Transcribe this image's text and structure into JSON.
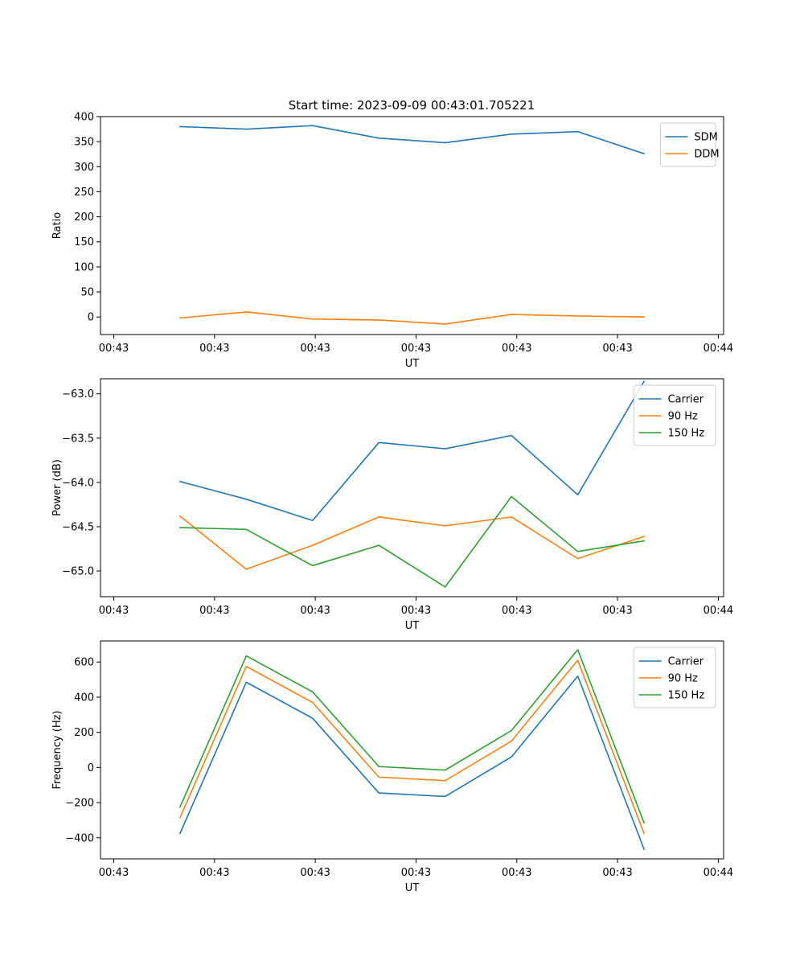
{
  "figure_title": "Start time: 2023-09-09 00:43:01.705221",
  "colors": {
    "c0": "#1f77b4",
    "c1": "#ff7f0e",
    "c2": "#2ca02c"
  },
  "chart_data": [
    {
      "type": "line",
      "title": "Start time: 2023-09-09 00:43:01.705221",
      "xlabel": "UT",
      "ylabel": "Ratio",
      "x": [
        1,
        2,
        3,
        4,
        5,
        6,
        7,
        8
      ],
      "xlim": [
        -0.2,
        9.2
      ],
      "xticks": [
        0,
        1.52,
        3.04,
        4.56,
        6.08,
        7.6,
        9.12
      ],
      "xtick_labels": [
        "00:43",
        "00:43",
        "00:43",
        "00:43",
        "00:43",
        "00:43",
        "00:44"
      ],
      "ylim": [
        -35,
        400
      ],
      "yticks": [
        0,
        50,
        100,
        150,
        200,
        250,
        300,
        350,
        400
      ],
      "ytick_labels": [
        "0",
        "50",
        "100",
        "150",
        "200",
        "250",
        "300",
        "350",
        "400"
      ],
      "legend": "upper right",
      "series": [
        {
          "name": "SDM",
          "color": "#1f77b4",
          "values": [
            380,
            375,
            382,
            357,
            348,
            365,
            370,
            326
          ]
        },
        {
          "name": "DDM",
          "color": "#ff7f0e",
          "values": [
            -2,
            10,
            -4,
            -6,
            -14,
            5,
            2,
            0
          ]
        }
      ]
    },
    {
      "type": "line",
      "title": "",
      "xlabel": "UT",
      "ylabel": "Power (dB)",
      "x": [
        1,
        2,
        3,
        4,
        5,
        6,
        7,
        8
      ],
      "xlim": [
        -0.2,
        9.2
      ],
      "xticks": [
        0,
        1.52,
        3.04,
        4.56,
        6.08,
        7.6,
        9.12
      ],
      "xtick_labels": [
        "00:43",
        "00:43",
        "00:43",
        "00:43",
        "00:43",
        "00:43",
        "00:44"
      ],
      "ylim": [
        -65.29,
        -62.83
      ],
      "yticks": [
        -65.0,
        -64.5,
        -64.0,
        -63.5,
        -63.0
      ],
      "ytick_labels": [
        "−65.0",
        "−64.5",
        "−64.0",
        "−63.5",
        "−63.0"
      ],
      "legend": "upper right",
      "series": [
        {
          "name": "Carrier",
          "color": "#1f77b4",
          "values": [
            -63.99,
            -64.19,
            -64.43,
            -63.55,
            -63.62,
            -63.47,
            -64.14,
            -62.86
          ]
        },
        {
          "name": "90 Hz",
          "color": "#ff7f0e",
          "values": [
            -64.38,
            -64.98,
            -64.71,
            -64.39,
            -64.49,
            -64.39,
            -64.86,
            -64.61
          ]
        },
        {
          "name": "150 Hz",
          "color": "#2ca02c",
          "values": [
            -64.51,
            -64.53,
            -64.94,
            -64.71,
            -65.18,
            -64.16,
            -64.78,
            -64.66
          ]
        }
      ]
    },
    {
      "type": "line",
      "title": "",
      "xlabel": "UT",
      "ylabel": "Frequency (Hz)",
      "x": [
        1,
        2,
        3,
        4,
        5,
        6,
        7,
        8
      ],
      "xlim": [
        -0.2,
        9.2
      ],
      "xticks": [
        0,
        1.52,
        3.04,
        4.56,
        6.08,
        7.6,
        9.12
      ],
      "xtick_labels": [
        "00:43",
        "00:43",
        "00:43",
        "00:43",
        "00:43",
        "00:43",
        "00:44"
      ],
      "ylim": [
        -520,
        720
      ],
      "yticks": [
        -400,
        -200,
        0,
        200,
        400,
        600
      ],
      "ytick_labels": [
        "−400",
        "−200",
        "0",
        "200",
        "400",
        "600"
      ],
      "legend": "upper right",
      "series": [
        {
          "name": "Carrier",
          "color": "#1f77b4",
          "values": [
            -375,
            485,
            280,
            -145,
            -165,
            60,
            520,
            -465
          ]
        },
        {
          "name": "90 Hz",
          "color": "#ff7f0e",
          "values": [
            -285,
            575,
            370,
            -55,
            -75,
            150,
            610,
            -375
          ]
        },
        {
          "name": "150 Hz",
          "color": "#2ca02c",
          "values": [
            -225,
            635,
            430,
            5,
            -15,
            210,
            670,
            -315
          ]
        }
      ]
    }
  ]
}
